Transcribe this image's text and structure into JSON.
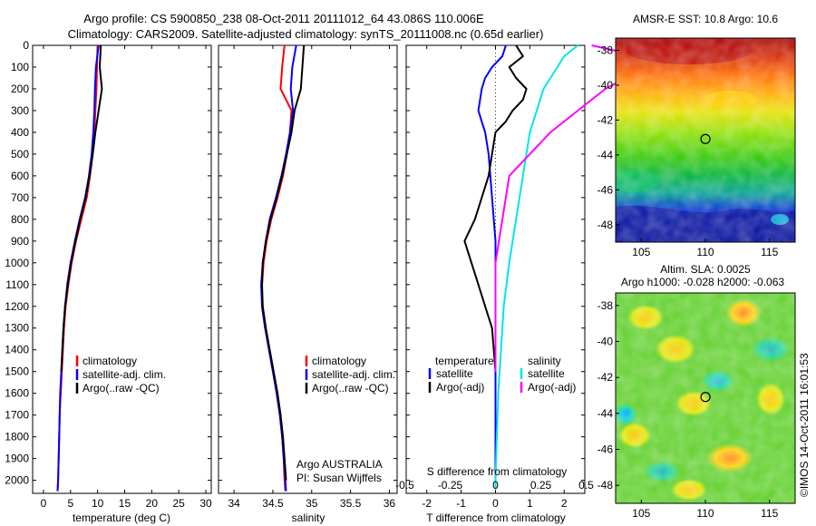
{
  "header": {
    "line1": "Argo profile: CS 5900850_238 08-Oct-2011 20111012_64 43.086S 110.006E",
    "line2": "Climatology: CARS2009. Satellite-adjusted climatology: synTS_20111008.nc (0.65d earlier)"
  },
  "side_label": "©IMOS 14-Oct-2011 16:01:53",
  "colors": {
    "climatology": "#ff0000",
    "satellite": "#0000ff",
    "argo": "#000000",
    "sal_satellite": "#00e5ee",
    "sal_argo": "#ff00ff"
  },
  "chart_data": [
    {
      "type": "line",
      "xlabel": "temperature (deg C)",
      "xlim": [
        -2,
        31
      ],
      "ylim": [
        0,
        2060
      ],
      "xticks": [
        0,
        5,
        10,
        15,
        20,
        25,
        30
      ],
      "yticks": [
        0,
        100,
        200,
        300,
        400,
        500,
        600,
        700,
        800,
        900,
        1000,
        1100,
        1200,
        1300,
        1400,
        1500,
        1600,
        1700,
        1800,
        1900,
        2000
      ],
      "legend": [
        "climatology",
        "satellite-adj. clim.",
        "Argo(..raw -QC)"
      ],
      "series": [
        {
          "name": "climatology",
          "depth": [
            0,
            100,
            200,
            300,
            400,
            500,
            600,
            700,
            800,
            900,
            1000,
            1100,
            1200,
            1300,
            1400,
            1500,
            1600,
            1700,
            1800,
            1900,
            2000,
            2050
          ],
          "values": [
            10.0,
            9.9,
            9.8,
            9.6,
            9.4,
            9.1,
            8.6,
            8.0,
            7.0,
            6.0,
            5.2,
            4.6,
            4.1,
            3.8,
            3.6,
            3.4,
            3.2,
            3.0,
            2.9,
            2.8,
            2.7,
            2.6
          ]
        },
        {
          "name": "satellite-adj. clim.",
          "depth": [
            0,
            100,
            200,
            300,
            400,
            500,
            600,
            700,
            800,
            900,
            1000,
            1100,
            1200,
            1300,
            1400,
            1500,
            1600,
            1700,
            1800,
            1900,
            2000,
            2050
          ],
          "values": [
            10.2,
            9.7,
            9.5,
            9.4,
            9.2,
            8.9,
            8.4,
            7.7,
            6.7,
            5.8,
            5.0,
            4.4,
            4.0,
            3.7,
            3.5,
            3.3,
            3.1,
            3.0,
            2.9,
            2.8,
            2.7,
            2.6
          ]
        },
        {
          "name": "Argo(..raw -QC)",
          "depth": [
            0,
            100,
            200,
            300,
            400,
            500,
            600,
            700,
            800,
            900,
            1000,
            1100,
            1200,
            1300,
            1400,
            1500
          ],
          "values": [
            10.6,
            10.4,
            10.8,
            10.2,
            9.6,
            9.1,
            8.5,
            7.8,
            6.8,
            5.9,
            5.1,
            4.5,
            4.0,
            3.7,
            3.5,
            3.3
          ]
        }
      ]
    },
    {
      "type": "line",
      "xlabel": "salinity",
      "xlim": [
        33.8,
        36.1
      ],
      "ylim": [
        0,
        2060
      ],
      "xticks": [
        34,
        34.5,
        35,
        35.5,
        36
      ],
      "legend": [
        "climatology",
        "satellite-adj. clim.",
        "Argo(..raw -QC)"
      ],
      "annotation": [
        "Argo AUSTRALIA",
        "PI: Susan Wijffels"
      ],
      "series": [
        {
          "name": "climatology",
          "depth": [
            0,
            100,
            200,
            300,
            400,
            500,
            600,
            700,
            800,
            900,
            1000,
            1100,
            1200,
            1300,
            1400,
            1500,
            1600,
            1700,
            1800,
            1900,
            2000,
            2050
          ],
          "values": [
            34.65,
            34.62,
            34.6,
            34.74,
            34.72,
            34.68,
            34.63,
            34.56,
            34.48,
            34.42,
            34.38,
            34.36,
            34.36,
            34.4,
            34.45,
            34.5,
            34.55,
            34.59,
            34.62,
            34.64,
            34.65,
            34.66
          ]
        },
        {
          "name": "satellite-adj. clim.",
          "depth": [
            0,
            100,
            200,
            300,
            400,
            500,
            600,
            700,
            800,
            900,
            1000,
            1100,
            1200,
            1300,
            1400,
            1500,
            1600,
            1700,
            1800,
            1900,
            2000,
            2050
          ],
          "values": [
            34.8,
            34.75,
            34.73,
            34.76,
            34.72,
            34.67,
            34.61,
            34.54,
            34.46,
            34.41,
            34.37,
            34.35,
            34.36,
            34.4,
            34.45,
            34.5,
            34.55,
            34.59,
            34.62,
            34.64,
            34.66,
            34.67
          ]
        },
        {
          "name": "Argo(..raw -QC)",
          "depth": [
            0,
            100,
            200,
            300,
            400,
            500,
            600,
            700,
            800,
            900,
            1000,
            1100,
            1200,
            1300,
            1400,
            1500,
            1600,
            1700,
            1800,
            1900,
            2000
          ],
          "values": [
            34.9,
            34.88,
            34.86,
            34.78,
            34.74,
            34.68,
            34.62,
            34.55,
            34.47,
            34.41,
            34.37,
            34.36,
            34.37,
            34.41,
            34.46,
            34.51,
            34.56,
            34.6,
            34.63,
            34.65,
            34.67
          ]
        }
      ]
    },
    {
      "type": "line",
      "xlabel": "T difference from climatology",
      "xlabel_top": "S difference from climatology",
      "xlim": [
        -2.6,
        2.6
      ],
      "ylim": [
        0,
        2060
      ],
      "xticks": [
        -2,
        -1,
        0,
        1,
        2
      ],
      "xticks_top": [
        -0.5,
        -0.25,
        0,
        0.25,
        0.5
      ],
      "legend_titles": [
        "temperature",
        "salinity"
      ],
      "legend": [
        "satellite",
        "Argo(-adj)",
        "satellite",
        "Argo(-adj)"
      ],
      "series": [
        {
          "name": "satellite",
          "depth": [
            0,
            50,
            100,
            150,
            200,
            250,
            300,
            350,
            400,
            500,
            700,
            900,
            1100,
            1300,
            1500,
            1700,
            1900,
            2040
          ],
          "values": [
            0.3,
            0.2,
            -0.1,
            -0.3,
            -0.4,
            -0.45,
            -0.5,
            -0.4,
            -0.3,
            -0.2,
            -0.1,
            0,
            0,
            0,
            0,
            0,
            0,
            0
          ]
        },
        {
          "name": "Argo(-adj)",
          "depth": [
            0,
            50,
            100,
            150,
            200,
            250,
            300,
            350,
            400,
            600,
            800,
            900,
            1000,
            1100,
            1200,
            1300,
            1400,
            1500
          ],
          "values": [
            0.6,
            0.8,
            0.4,
            0.6,
            0.9,
            0.8,
            0.5,
            0.3,
            0,
            -0.2,
            -0.6,
            -0.9,
            -0.7,
            -0.5,
            -0.3,
            -0.1,
            -0.05,
            0
          ]
        },
        {
          "name": "satellite",
          "depth": [
            0,
            50,
            100,
            200,
            300,
            400,
            600,
            800,
            1000,
            1200,
            1400,
            1600,
            1800,
            2000,
            2040
          ],
          "values": [
            0.6,
            0.5,
            0.45,
            0.35,
            0.3,
            0.25,
            0.2,
            0.15,
            0.1,
            0.06,
            0.04,
            0.02,
            0.01,
            0,
            0
          ]
        },
        {
          "name": "Argo(-adj)",
          "depth": [
            0,
            50,
            100,
            200,
            300,
            400,
            600,
            800,
            1000,
            1200,
            1400,
            1500
          ],
          "values": [
            0.7,
            1.05,
            1.1,
            0.8,
            0.6,
            0.4,
            0.1,
            0.05,
            0,
            0,
            0,
            0
          ]
        }
      ]
    },
    {
      "type": "heatmap",
      "title": "AMSR-E SST: 10.8 Argo: 10.6",
      "xlim": [
        103,
        117
      ],
      "ylim": [
        -49,
        -37.3
      ],
      "xticks": [
        105,
        110,
        115
      ],
      "yticks": [
        -38,
        -40,
        -42,
        -44,
        -46,
        -48
      ],
      "marker": [
        110.006,
        -43.086
      ]
    },
    {
      "type": "heatmap",
      "title": "Altim. SLA: 0.0025",
      "subtitle": "Argo h1000: -0.028 h2000: -0.063",
      "xlim": [
        103,
        117
      ],
      "ylim": [
        -49,
        -37.3
      ],
      "xticks": [
        105,
        110,
        115
      ],
      "yticks": [
        -38,
        -40,
        -42,
        -44,
        -46,
        -48
      ],
      "marker": [
        110.006,
        -43.086
      ]
    }
  ]
}
